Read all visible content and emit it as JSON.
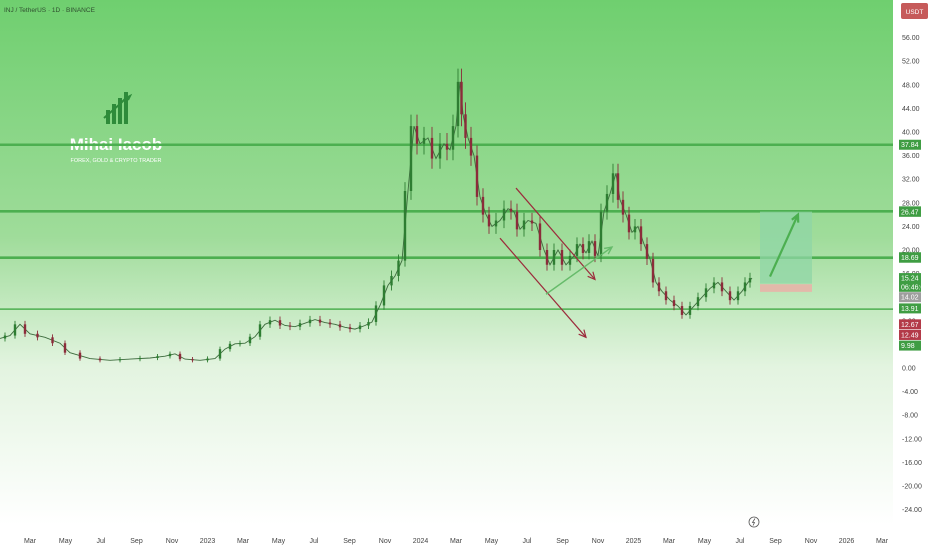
{
  "header": {
    "symbol_line": "INJ / TetherUS · 1D · BINANCE",
    "currency_button": "USDT"
  },
  "watermark": {
    "name": "Mihai Iacob",
    "tagline": "FOREX, GOLD & CRYPTO TRADER"
  },
  "colors": {
    "bg_top": "#6fcf6f",
    "bg_bottom": "#ffffff",
    "level_line": "#4caf50",
    "candle_up": "#2e7d32",
    "candle_down": "#8b2c3a",
    "channel": "#9c2b3c",
    "arrow_green": "#66bb6a",
    "target_box": "#8fd5a6",
    "stop_box": "#e8b4a8"
  },
  "chart_data": {
    "type": "candlestick",
    "title": "INJ / TetherUS · 1D · BINANCE",
    "currency": "USDT",
    "x_ticks": [
      "Mar",
      "May",
      "Jul",
      "Sep",
      "Nov",
      "2023",
      "Mar",
      "May",
      "Jul",
      "Sep",
      "Nov",
      "2024",
      "Mar",
      "May",
      "Jul",
      "Sep",
      "Nov",
      "2025",
      "Mar",
      "May",
      "Jul",
      "Sep",
      "Nov",
      "2026",
      "Mar"
    ],
    "y_ticks": [
      56.0,
      52.0,
      48.0,
      44.0,
      40.0,
      36.0,
      32.0,
      28.0,
      24.0,
      20.0,
      16.0,
      12.0,
      8.0,
      4.0,
      0.0,
      -4.0,
      -8.0,
      -12.0,
      -16.0,
      -20.0,
      -24.0
    ],
    "ylim": [
      -26,
      59
    ],
    "horizontal_levels": [
      37.84,
      26.55,
      18.69,
      9.98
    ],
    "price_tags": [
      {
        "value": 37.84,
        "label": "37.84",
        "color": "#3f9d43"
      },
      {
        "value": 26.55,
        "label": "26.55",
        "color": "#3f9d43"
      },
      {
        "value": 26.47,
        "label": "26.47",
        "color": "#3f9d43"
      },
      {
        "value": 18.77,
        "label": "18.77",
        "color": "#3f9d43"
      },
      {
        "value": 18.69,
        "label": "18.69",
        "color": "#3f9d43"
      },
      {
        "value": 15.24,
        "label": "15.24",
        "color": "#3f9d43"
      },
      {
        "value": 13.76,
        "label": "06:46:04",
        "color": "#3f9d43"
      },
      {
        "value": 12.0,
        "label": "14.02",
        "color": "#9e9e9e"
      },
      {
        "value": 10.1,
        "label": "13.91",
        "color": "#3f9d43"
      },
      {
        "value": 7.4,
        "label": "12.67",
        "color": "#b33a48"
      },
      {
        "value": 5.6,
        "label": "12.49",
        "color": "#b33a48"
      },
      {
        "value": 3.8,
        "label": "9.98",
        "color": "#3f9d43"
      }
    ],
    "price_path": [
      [
        0,
        5.0
      ],
      [
        10,
        5.5
      ],
      [
        20,
        7.4
      ],
      [
        30,
        5.8
      ],
      [
        45,
        5.2
      ],
      [
        60,
        4.2
      ],
      [
        70,
        2.6
      ],
      [
        90,
        1.6
      ],
      [
        110,
        1.3
      ],
      [
        130,
        1.5
      ],
      [
        150,
        1.7
      ],
      [
        165,
        2.0
      ],
      [
        175,
        2.4
      ],
      [
        185,
        1.5
      ],
      [
        200,
        1.3
      ],
      [
        215,
        1.6
      ],
      [
        225,
        3.2
      ],
      [
        235,
        4.1
      ],
      [
        245,
        4.2
      ],
      [
        255,
        5.3
      ],
      [
        265,
        7.4
      ],
      [
        275,
        8.1
      ],
      [
        285,
        7.2
      ],
      [
        295,
        7.0
      ],
      [
        305,
        7.6
      ],
      [
        315,
        8.2
      ],
      [
        325,
        7.7
      ],
      [
        335,
        7.4
      ],
      [
        345,
        6.9
      ],
      [
        355,
        6.6
      ],
      [
        365,
        7.2
      ],
      [
        372,
        7.8
      ],
      [
        380,
        10.6
      ],
      [
        388,
        14.0
      ],
      [
        395,
        15.6
      ],
      [
        402,
        18.2
      ],
      [
        408,
        30.0
      ],
      [
        414,
        41.0
      ],
      [
        420,
        38.0
      ],
      [
        428,
        39.0
      ],
      [
        436,
        35.5
      ],
      [
        444,
        38.0
      ],
      [
        450,
        37.0
      ],
      [
        456,
        41.0
      ],
      [
        460,
        48.5
      ],
      [
        463,
        43.0
      ],
      [
        468,
        39.0
      ],
      [
        474,
        36.0
      ],
      [
        480,
        29.0
      ],
      [
        486,
        26.0
      ],
      [
        492,
        24.0
      ],
      [
        500,
        25.0
      ],
      [
        508,
        27.0
      ],
      [
        514,
        26.5
      ],
      [
        520,
        23.5
      ],
      [
        528,
        25.0
      ],
      [
        536,
        24.5
      ],
      [
        544,
        20.0
      ],
      [
        550,
        17.5
      ],
      [
        558,
        20.0
      ],
      [
        566,
        17.5
      ],
      [
        574,
        19.0
      ],
      [
        580,
        21.0
      ],
      [
        586,
        19.5
      ],
      [
        592,
        21.5
      ],
      [
        598,
        19.0
      ],
      [
        604,
        26.5
      ],
      [
        610,
        29.5
      ],
      [
        616,
        33.0
      ],
      [
        620,
        28.5
      ],
      [
        626,
        26.0
      ],
      [
        632,
        23.0
      ],
      [
        638,
        24.0
      ],
      [
        644,
        21.0
      ],
      [
        650,
        18.5
      ],
      [
        656,
        14.5
      ],
      [
        662,
        13.0
      ],
      [
        670,
        11.5
      ],
      [
        678,
        10.5
      ],
      [
        686,
        9.0
      ],
      [
        694,
        10.5
      ],
      [
        702,
        12.0
      ],
      [
        710,
        13.5
      ],
      [
        718,
        14.5
      ],
      [
        726,
        13.0
      ],
      [
        734,
        11.5
      ],
      [
        742,
        13.0
      ],
      [
        748,
        14.5
      ],
      [
        752,
        15.24
      ]
    ],
    "annotations": {
      "down_channel_upper": [
        [
          516,
          30.5
        ],
        [
          595,
          15.0
        ]
      ],
      "down_channel_lower": [
        [
          500,
          22.0
        ],
        [
          586,
          5.2
        ]
      ],
      "green_up_arrow": [
        [
          546,
          12.5
        ],
        [
          612,
          20.5
        ]
      ],
      "target_box": {
        "x0": 760,
        "x1": 812,
        "y0": 14.3,
        "y1": 26.5
      },
      "stop_box": {
        "x0": 760,
        "x1": 812,
        "y0": 12.9,
        "y1": 14.2
      },
      "target_arrow": [
        [
          770,
          15.5
        ],
        [
          798,
          26.0
        ]
      ]
    }
  }
}
